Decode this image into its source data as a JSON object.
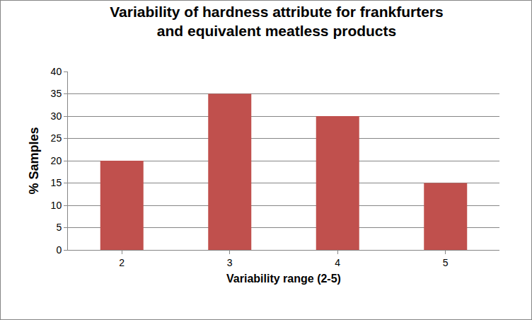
{
  "chart_data": {
    "type": "bar",
    "title": "Variability of hardness attribute for frankfurters and equivalent meatless products",
    "x_label": "Variability range (2-5)",
    "y_label": "% Samples",
    "categories": [
      "2",
      "3",
      "4",
      "5"
    ],
    "values": [
      20,
      35,
      30,
      15
    ],
    "color": "#c0504d",
    "ylim": [
      0,
      40
    ],
    "yticks": [
      0,
      5,
      10,
      15,
      20,
      25,
      30,
      35,
      40
    ],
    "grid": true
  }
}
